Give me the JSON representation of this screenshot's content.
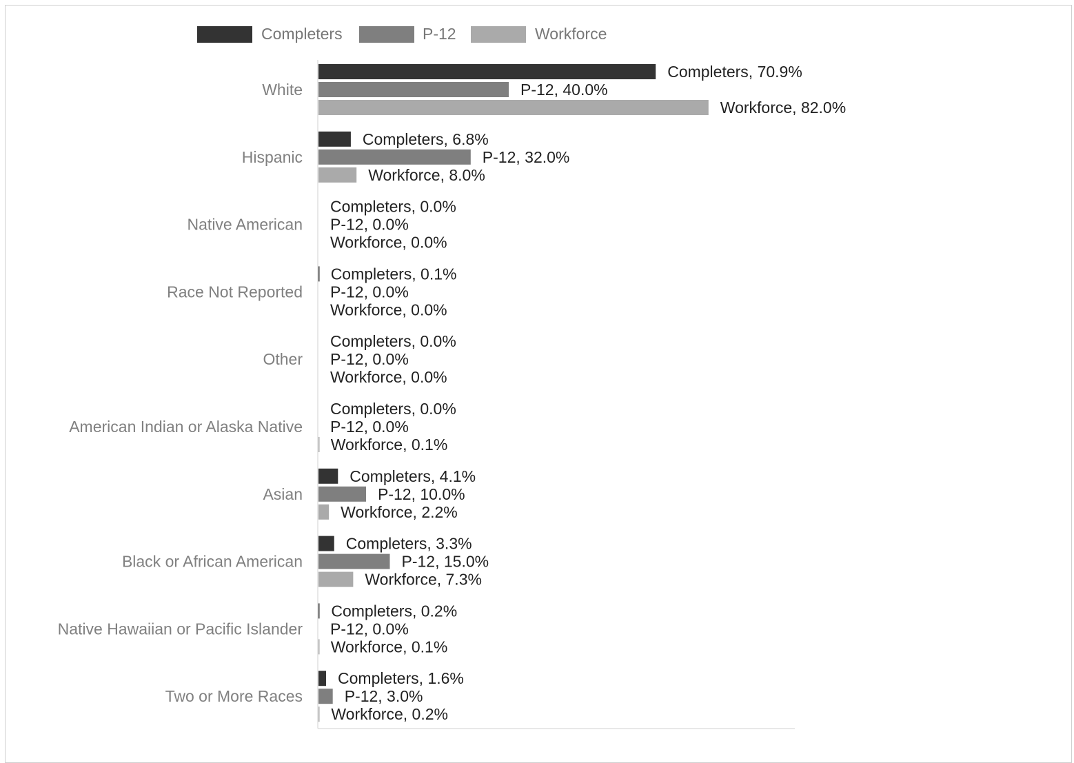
{
  "chart_data": {
    "type": "bar",
    "orientation": "horizontal",
    "xlim": [
      0,
      100
    ],
    "grid": false,
    "legend_position": "top",
    "categories": [
      "White",
      "Hispanic",
      "Native American",
      "Race Not Reported",
      "Other",
      "American Indian or Alaska Native",
      "Asian",
      "Black or African American",
      "Native Hawaiian or Pacific Islander",
      "Two or More Races"
    ],
    "series": [
      {
        "name": "Completers",
        "color": "#333333",
        "values": [
          70.9,
          6.8,
          0.0,
          0.1,
          0.0,
          0.0,
          4.1,
          3.3,
          0.2,
          1.6
        ],
        "labels": [
          "Completers, 70.9%",
          "Completers, 6.8%",
          "Completers, 0.0%",
          "Completers, 0.1%",
          "Completers, 0.0%",
          "Completers, 0.0%",
          "Completers, 4.1%",
          "Completers, 3.3%",
          "Completers, 0.2%",
          "Completers, 1.6%"
        ]
      },
      {
        "name": "P-12",
        "color": "#7f7f7f",
        "values": [
          40.0,
          32.0,
          0.0,
          0.0,
          0.0,
          0.0,
          10.0,
          15.0,
          0.0,
          3.0
        ],
        "labels": [
          "P-12, 40.0%",
          "P-12, 32.0%",
          "P-12, 0.0%",
          "P-12, 0.0%",
          "P-12, 0.0%",
          "P-12, 0.0%",
          "P-12, 10.0%",
          "P-12, 15.0%",
          "P-12, 0.0%",
          "P-12, 3.0%"
        ]
      },
      {
        "name": "Workforce",
        "color": "#aaaaaa",
        "values": [
          82.0,
          8.0,
          0.0,
          0.0,
          0.0,
          0.1,
          2.2,
          7.3,
          0.1,
          0.2
        ],
        "labels": [
          "Workforce, 82.0%",
          "Workforce, 8.0%",
          "Workforce, 0.0%",
          "Workforce, 0.0%",
          "Workforce, 0.0%",
          "Workforce, 0.1%",
          "Workforce, 2.2%",
          "Workforce, 7.3%",
          "Workforce, 0.1%",
          "Workforce, 0.2%"
        ]
      }
    ]
  }
}
